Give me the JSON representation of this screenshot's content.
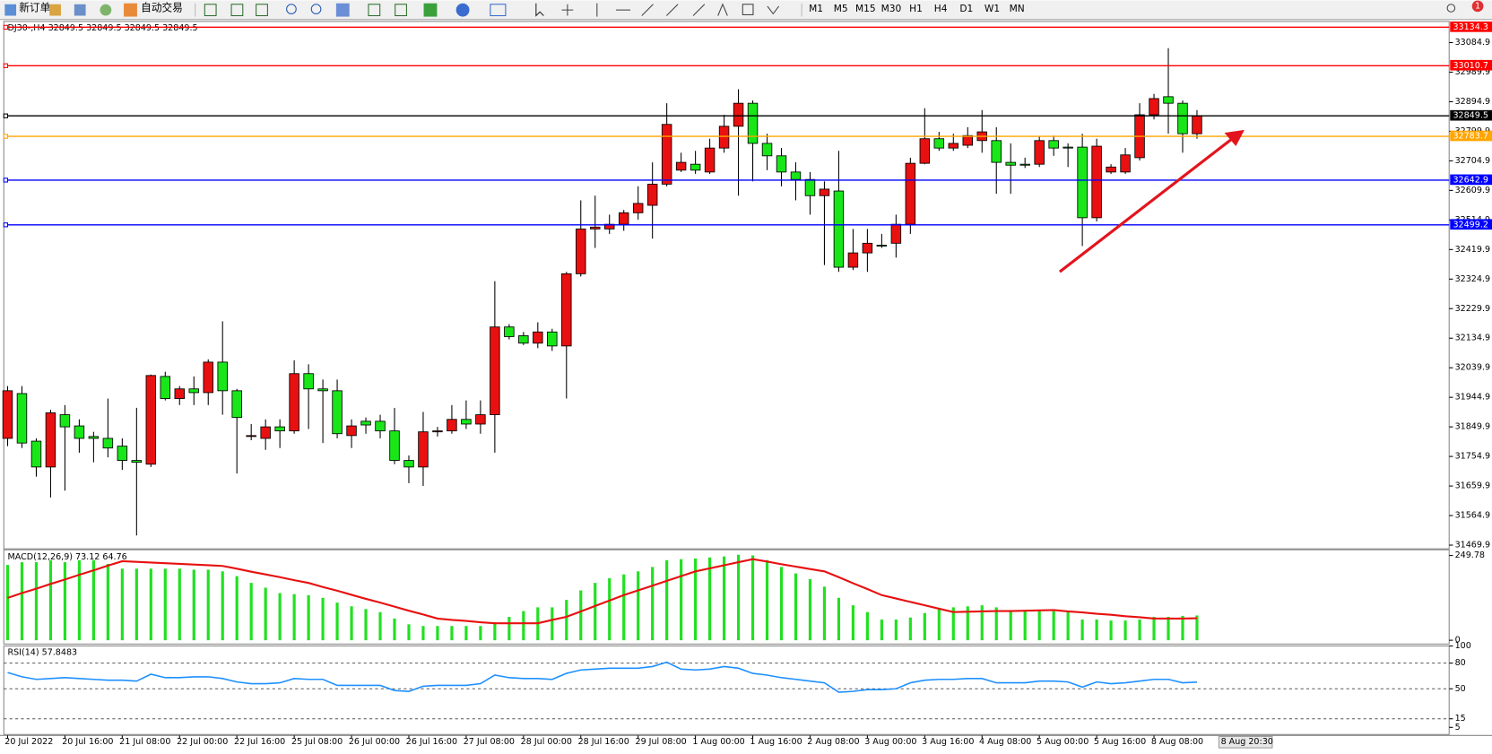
{
  "toolbar": {
    "new_order": "新订单",
    "auto_trading": "自动交易",
    "timeframes": [
      "M1",
      "M5",
      "M15",
      "M30",
      "H1",
      "H4",
      "D1",
      "W1",
      "MN"
    ],
    "notifications": "1"
  },
  "chart_data": [
    {
      "type": "candlestick",
      "title": "DJ30-,H4  32849.5 32849.5 32849.5 32849.5",
      "categories": [
        "20 Jul 2022",
        null,
        null,
        null,
        "20 Jul 16:00",
        null,
        null,
        null,
        "21 Jul 08:00",
        null,
        null,
        null,
        "22 Jul 00:00",
        null,
        null,
        null,
        "22 Jul 16:00",
        null,
        null,
        null,
        "25 Jul 08:00",
        null,
        null,
        null,
        "26 Jul 00:00",
        null,
        null,
        null,
        "26 Jul 16:00",
        null,
        null,
        null,
        "27 Jul 08:00",
        null,
        null,
        null,
        "28 Jul 00:00",
        null,
        null,
        null,
        "28 Jul 16:00",
        null,
        null,
        null,
        "29 Jul 08:00",
        null,
        null,
        null,
        "1 Aug 00:00",
        null,
        null,
        null,
        "1 Aug 16:00",
        null,
        null,
        null,
        "2 Aug 08:00",
        null,
        null,
        null,
        "3 Aug 00:00",
        null,
        null,
        null,
        "3 Aug 16:00",
        null,
        null,
        null,
        "4 Aug 08:00",
        null,
        null,
        null,
        "5 Aug 00:00",
        null,
        null,
        null,
        "5 Aug 16:00",
        null,
        null,
        null,
        "8 Aug 08:00",
        null,
        null,
        null
      ],
      "open": [
        31813,
        31957,
        31804,
        31721,
        31889,
        31853,
        31819,
        31813,
        31788,
        31742,
        31730,
        32012,
        31941,
        31972,
        31960,
        32058,
        31966,
        31819,
        31813,
        31850,
        31837,
        32021,
        31972,
        31966,
        31822,
        31868,
        31868,
        31837,
        31742,
        31721,
        31834,
        31837,
        31874,
        31859,
        31889,
        32171,
        32143,
        32119,
        32155,
        32110,
        32342,
        32486,
        32486,
        32501,
        32538,
        32562,
        32630,
        32675,
        32694,
        32669,
        32746,
        32816,
        32890,
        32761,
        32721,
        32669,
        32645,
        32593,
        32608,
        32363,
        32409,
        32434,
        32440,
        32501,
        32697,
        32776,
        32746,
        32755,
        32770,
        32770,
        32700,
        32694,
        32694,
        32770,
        32749,
        32749,
        32522,
        32669,
        32669,
        32715,
        32853,
        32911,
        32890,
        32792
      ],
      "high": [
        31981,
        31981,
        31813,
        31905,
        31920,
        31874,
        31834,
        31941,
        31813,
        31911,
        32018,
        32027,
        31981,
        32012,
        32067,
        32189,
        31972,
        31859,
        31874,
        31874,
        32064,
        32051,
        32002,
        32002,
        31874,
        31880,
        31889,
        31911,
        31758,
        31898,
        31850,
        31920,
        31935,
        31935,
        32318,
        32180,
        32155,
        32186,
        32165,
        32348,
        32578,
        32593,
        32532,
        32547,
        32623,
        32700,
        32890,
        32731,
        32737,
        32776,
        32853,
        32935,
        32899,
        32792,
        32746,
        32700,
        32669,
        32639,
        32737,
        32486,
        32486,
        32470,
        32532,
        32715,
        32874,
        32798,
        32792,
        32813,
        32868,
        32813,
        32761,
        32715,
        32783,
        32786,
        32761,
        32792,
        32776,
        32694,
        32746,
        32890,
        32920,
        33067,
        32899,
        32868
      ],
      "low": [
        31788,
        31782,
        31690,
        31623,
        31645,
        31767,
        31736,
        31752,
        31712,
        31501,
        31721,
        31935,
        31920,
        31920,
        31920,
        31889,
        31700,
        31807,
        31776,
        31782,
        31828,
        31843,
        31798,
        31813,
        31782,
        31828,
        31813,
        31730,
        31669,
        31660,
        31819,
        31828,
        31843,
        31828,
        31767,
        32131,
        32113,
        32103,
        32094,
        31941,
        32333,
        32425,
        32470,
        32480,
        32516,
        32455,
        32623,
        32669,
        32663,
        32663,
        32731,
        32593,
        32639,
        32675,
        32623,
        32578,
        32532,
        32370,
        32348,
        32354,
        32348,
        32425,
        32394,
        32470,
        32694,
        32737,
        32737,
        32746,
        32731,
        32599,
        32599,
        32682,
        32685,
        32721,
        32685,
        32431,
        32510,
        32663,
        32663,
        32706,
        32838,
        32792,
        32731,
        32776
      ],
      "close": [
        31966,
        31798,
        31721,
        31895,
        31850,
        31813,
        31813,
        31782,
        31742,
        31736,
        32015,
        31941,
        31972,
        31960,
        32058,
        31966,
        31880,
        31822,
        31850,
        31837,
        32021,
        31972,
        31966,
        31828,
        31853,
        31856,
        31837,
        31742,
        31721,
        31834,
        31837,
        31874,
        31859,
        31889,
        32171,
        32140,
        32119,
        32155,
        32110,
        32342,
        32486,
        32492,
        32501,
        32538,
        32568,
        32630,
        32822,
        32700,
        32675,
        32746,
        32816,
        32890,
        32761,
        32721,
        32669,
        32645,
        32593,
        32614,
        32363,
        32409,
        32440,
        32431,
        32501,
        32697,
        32776,
        32746,
        32761,
        32786,
        32798,
        32700,
        32691,
        32691,
        32770,
        32746,
        32746,
        32522,
        32752,
        32685,
        32724,
        32853,
        32905,
        32890,
        32792,
        32849.5
      ],
      "up_color": "#e81010",
      "down_color": "#19e619",
      "wick_color": "#000000",
      "ylim": [
        31461,
        33153
      ],
      "yticks": [
        33084.9,
        32989.9,
        32894.9,
        32799.9,
        32704.9,
        32609.9,
        32514.9,
        32419.9,
        32324.9,
        32229.9,
        32134.9,
        32039.9,
        31944.9,
        31849.9,
        31754.9,
        31659.9,
        31564.9,
        31469.9
      ],
      "levels": [
        {
          "value": 33134.3,
          "color": "#ff0000"
        },
        {
          "value": 33010.7,
          "color": "#ff0000"
        },
        {
          "value": 32849.5,
          "color": "#000000"
        },
        {
          "value": 32783.7,
          "color": "#ffa500"
        },
        {
          "value": 32642.9,
          "color": "#0000ff"
        },
        {
          "value": 32499.2,
          "color": "#0000ff"
        }
      ],
      "cursor_label": "8 Aug 20:30"
    },
    {
      "type": "macd",
      "title": "MACD(12,26,9) 73.12 64.76",
      "ylim": [
        -11.2,
        263.8
      ],
      "yticks": [
        249.78,
        0
      ],
      "series": [
        {
          "style": "bar",
          "color": "#22e022",
          "values": [
            222,
            230,
            230,
            236,
            230,
            236,
            236,
            225,
            211,
            211,
            211,
            211,
            211,
            208,
            208,
            203,
            189,
            169,
            155,
            139,
            136,
            133,
            125,
            111,
            100,
            92,
            83,
            64,
            47,
            42,
            42,
            42,
            42,
            42,
            53,
            69,
            86,
            97,
            97,
            119,
            147,
            169,
            183,
            194,
            203,
            216,
            236,
            239,
            241,
            244,
            247,
            252,
            250,
            236,
            216,
            197,
            180,
            158,
            125,
            103,
            83,
            61,
            61,
            67,
            80,
            92,
            97,
            100,
            103,
            97,
            89,
            86,
            86,
            86,
            83,
            61,
            61,
            58,
            58,
            61,
            69,
            69,
            72,
            73.12
          ]
        },
        {
          "style": "line",
          "color": "#e81010",
          "values": [
            125,
            139,
            152,
            166,
            179,
            193,
            206,
            220,
            233,
            231,
            229,
            227,
            225,
            223,
            221,
            219,
            211,
            202,
            194,
            186,
            177,
            169,
            157,
            146,
            134,
            122,
            111,
            99,
            87,
            76,
            64,
            60,
            57,
            53,
            50,
            50,
            50,
            50,
            60,
            69,
            85,
            101,
            117,
            133,
            147,
            161,
            175,
            189,
            203,
            212,
            221,
            230,
            239,
            232,
            224,
            217,
            210,
            203,
            186,
            168,
            151,
            133,
            123,
            113,
            103,
            93,
            83,
            84,
            85,
            86,
            86,
            87,
            88,
            89,
            85,
            82,
            78,
            75,
            71,
            68,
            64,
            64,
            64,
            64.76
          ]
        }
      ]
    },
    {
      "type": "line",
      "title": "RSI(14) 57.8483",
      "ylim": [
        0,
        100
      ],
      "yticks": [
        100,
        80,
        50,
        15,
        5
      ],
      "levels": [
        80,
        50,
        15
      ],
      "series": [
        {
          "color": "#1e90ff",
          "values": [
            69,
            64,
            61,
            62,
            63,
            62,
            61,
            60,
            60,
            59,
            67,
            63,
            63,
            64,
            64,
            62,
            58,
            56,
            56,
            57,
            62,
            61,
            61,
            54,
            54,
            54,
            54,
            48,
            47,
            53,
            54,
            54,
            54,
            56,
            66,
            63,
            62,
            62,
            61,
            68,
            72,
            73,
            74,
            74,
            74,
            76,
            81,
            73,
            72,
            73,
            76,
            74,
            68,
            66,
            63,
            61,
            59,
            57,
            46,
            47,
            49,
            49,
            50,
            57,
            60,
            61,
            61,
            62,
            62,
            57,
            57,
            57,
            59,
            59,
            58,
            52,
            58,
            56,
            57,
            59,
            61,
            61,
            57,
            57.8483
          ]
        }
      ]
    }
  ]
}
